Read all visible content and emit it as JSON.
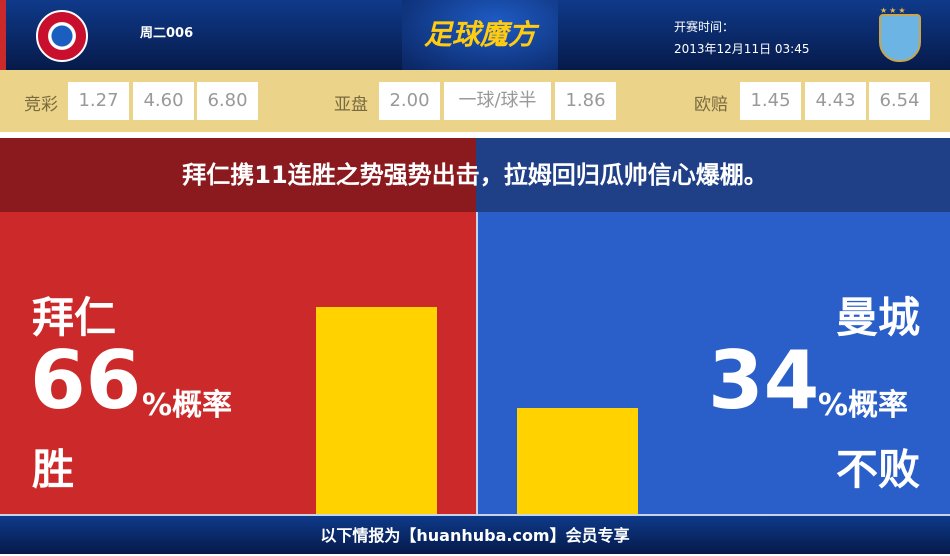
{
  "header": {
    "match_code": "周二006",
    "brand": "足球魔方",
    "time_label": "开赛时间：",
    "kickoff": "2013年12月11日 03:45",
    "home_logo": "fc-bayern-logo",
    "away_logo": "man-city-logo"
  },
  "odds": {
    "jingcai": {
      "label": "竞彩",
      "values": [
        "1.27",
        "4.60",
        "6.80"
      ]
    },
    "asian": {
      "label": "亚盘",
      "values": [
        "2.00",
        "一球/球半",
        "1.86"
      ]
    },
    "euro": {
      "label": "欧赔",
      "values": [
        "1.45",
        "4.43",
        "6.54"
      ]
    }
  },
  "headline": "拜仁携11连胜之势强势出击，拉姆回归瓜帅信心爆棚。",
  "home": {
    "team": "拜仁",
    "percent": "66",
    "unit": "%概率",
    "outcome": "胜",
    "probability": 66
  },
  "away": {
    "team": "曼城",
    "percent": "34",
    "unit": "%概率",
    "outcome": "不败",
    "probability": 34
  },
  "colors": {
    "home": "#cc2a2a",
    "away": "#2a5ec9",
    "bar": "#ffd200"
  },
  "footer": "以下情报为【huanhuba.com】会员专享"
}
